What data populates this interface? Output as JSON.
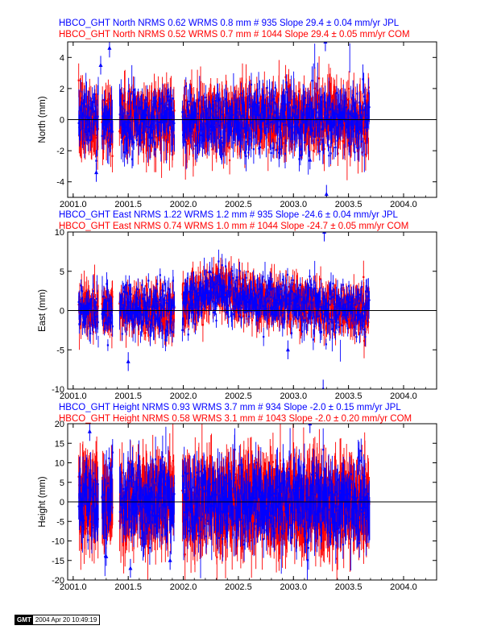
{
  "colors": {
    "jpl": "#0000ff",
    "com": "#ff0000",
    "zero_line": "#000000"
  },
  "chart_data": [
    {
      "type": "scatter",
      "component": "North",
      "header_lines": [
        "HBCO_GHT North NRMS 0.62 WRMS  0.8 mm # 935 Slope   29.4 ±  0.04 mm/yr JPL",
        "HBCO_GHT North NRMS 0.52 WRMS  0.7 mm # 1044 Slope   29.4 ±  0.05 mm/yr COM"
      ],
      "ylabel": "North (mm)",
      "xlim": [
        2000.95,
        2004.3
      ],
      "ylim": [
        -5,
        5
      ],
      "x_ticks": [
        "2001.0",
        "2001.5",
        "2002.0",
        "2002.5",
        "2003.0",
        "2003.5",
        "2004.0"
      ],
      "y_ticks": [
        "-4",
        "-2",
        "0",
        "2",
        "4"
      ],
      "series": [
        {
          "name": "COM",
          "n": 1044,
          "wrms": 0.7,
          "error_bar": 1.0
        },
        {
          "name": "JPL",
          "n": 935,
          "wrms": 0.8,
          "error_bar": 0.65
        }
      ],
      "notable_points": [
        {
          "x": 2001.33,
          "y": 4.6
        },
        {
          "x": 2001.25,
          "y": 3.5
        },
        {
          "x": 2001.21,
          "y": -3.4
        },
        {
          "x": 2003.29,
          "y": 5.0
        },
        {
          "x": 2003.3,
          "y": -4.8
        },
        {
          "x": 2003.15,
          "y": -2.6
        }
      ]
    },
    {
      "type": "scatter",
      "component": "East",
      "header_lines": [
        "HBCO_GHT East NRMS 1.22 WRMS  1.2 mm # 935 Slope  -24.6 ±  0.04 mm/yr JPL",
        "HBCO_GHT East NRMS 0.74 WRMS  1.0 mm # 1044 Slope  -24.7 ±  0.05 mm/yr COM"
      ],
      "ylabel": "East (mm)",
      "xlim": [
        2000.95,
        2004.3
      ],
      "ylim": [
        -10,
        10
      ],
      "x_ticks": [
        "2001.0",
        "2001.5",
        "2002.0",
        "2002.5",
        "2003.0",
        "2003.5",
        "2004.0"
      ],
      "y_ticks": [
        "-10",
        "-5",
        "0",
        "5",
        "10"
      ],
      "series": [
        {
          "name": "COM",
          "n": 1044,
          "wrms": 1.0,
          "error_bar": 1.5
        },
        {
          "name": "JPL",
          "n": 935,
          "wrms": 1.2,
          "error_bar": 1.0
        }
      ],
      "notable_points": [
        {
          "x": 2002.24,
          "y": 5.0
        },
        {
          "x": 2001.5,
          "y": -6.5
        },
        {
          "x": 2003.28,
          "y": 10.0
        },
        {
          "x": 2003.27,
          "y": -10.0
        },
        {
          "x": 2002.95,
          "y": -5.0
        }
      ]
    },
    {
      "type": "scatter",
      "component": "Height",
      "header_lines": [
        "HBCO_GHT Height NRMS 0.93 WRMS  3.7 mm # 934 Slope   -2.0 ±  0.15 mm/yr JPL",
        "HBCO_GHT Height NRMS 0.58 WRMS  3.1 mm # 1043 Slope   -2.0 ±  0.20 mm/yr COM"
      ],
      "ylabel": "Height (mm)",
      "xlim": [
        2000.95,
        2004.3
      ],
      "ylim": [
        -20,
        20
      ],
      "x_ticks": [
        "2001.0",
        "2001.5",
        "2002.0",
        "2002.5",
        "2003.0",
        "2003.5",
        "2004.0"
      ],
      "y_ticks": [
        "-20",
        "-15",
        "-10",
        "-5",
        "0",
        "5",
        "10",
        "15",
        "20"
      ],
      "series": [
        {
          "name": "COM",
          "n": 1043,
          "wrms": 3.1,
          "error_bar": 7.0
        },
        {
          "name": "JPL",
          "n": 934,
          "wrms": 3.7,
          "error_bar": 4.0
        }
      ],
      "notable_points": [
        {
          "x": 2001.15,
          "y": 18.0
        },
        {
          "x": 2001.52,
          "y": -17.0
        },
        {
          "x": 2001.88,
          "y": -15.0
        },
        {
          "x": 2003.15,
          "y": 20.0
        },
        {
          "x": 2001.3,
          "y": -14.0
        }
      ]
    }
  ],
  "footer": {
    "logo_text": "GMT",
    "timestamp": "2004 Apr 20 10:49:19"
  }
}
